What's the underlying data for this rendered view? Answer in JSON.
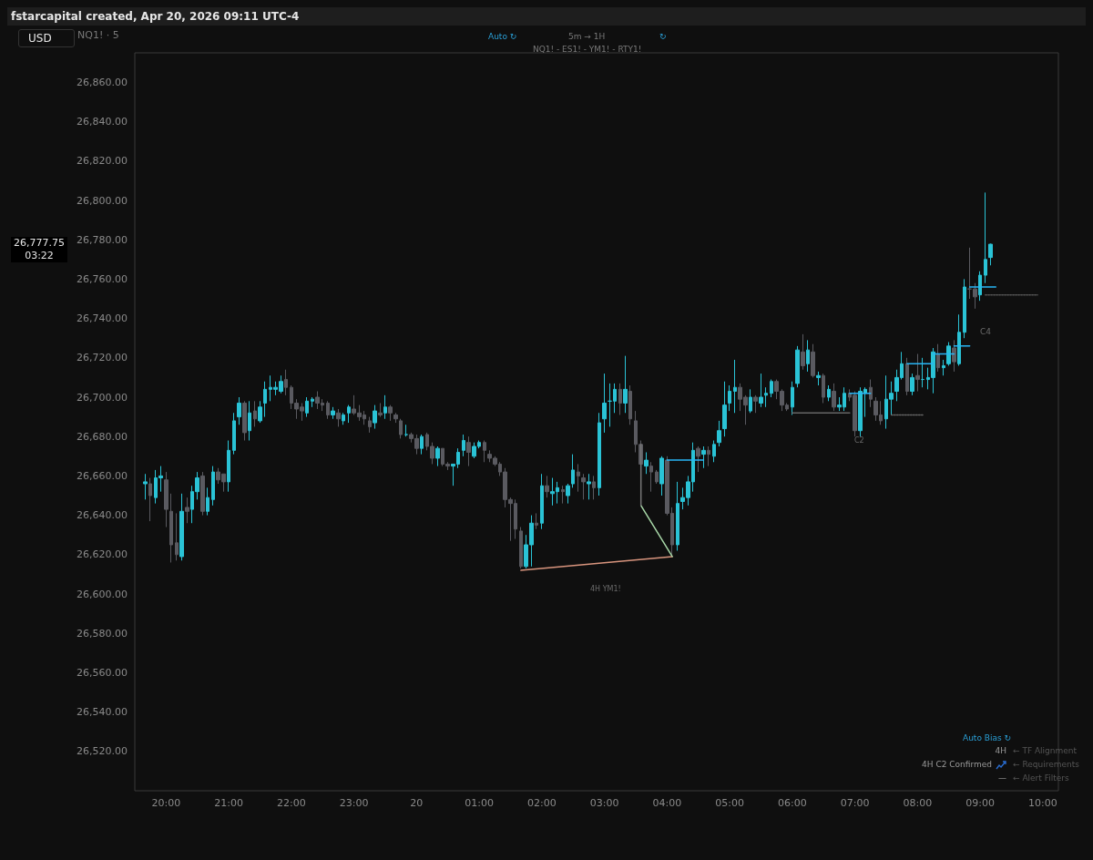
{
  "chart_data": {
    "type": "candlestick",
    "title": "fstarcapital created, Apr 20, 2026 09:11 UTC-4",
    "colors": [
      "#2ac3d6",
      "#5a5a60",
      "#2ac3d6",
      "#2ac3d6",
      "#5a5a60",
      "#5a5a60",
      "#5a5a60",
      "#2ac3d6",
      "#5a5a60",
      "#2ac3d6",
      "#2ac3d6",
      "#5a5a60",
      "#2ac3d6",
      "#2ac3d6",
      "#5a5a60",
      "#5a5a60",
      "#2ac3d6",
      "#2ac3d6",
      "#2ac3d6",
      "#5a5a60",
      "#2ac3d6",
      "#5a5a60",
      "#2ac3d6",
      "#2ac3d6",
      "#2ac3d6",
      "#2ac3d6",
      "#2ac3d6",
      "#5a5a60",
      "#5a5a60",
      "#5a5a60",
      "#5a5a60",
      "#2ac3d6",
      "#2ac3d6",
      "#5a5a60",
      "#5a5a60",
      "#5a5a60",
      "#2ac3d6",
      "#5a5a60",
      "#2ac3d6",
      "#2ac3d6",
      "#5a5a60",
      "#5a5a60",
      "#5a5a60",
      "#5a5a60",
      "#2ac3d6",
      "#5a5a60",
      "#2ac3d6",
      "#5a5a60",
      "#5a5a60",
      "#5a5a60",
      "#2ac3d6",
      "#5a5a60",
      "#5a5a60",
      "#2ac3d6",
      "#5a5a60",
      "#5a5a60",
      "#2ac3d6",
      "#5a5a60",
      "#5a5a60",
      "#2ac3d6",
      "#2ac3d6",
      "#2ac3d6",
      "#5a5a60",
      "#2ac3d6",
      "#2ac3d6",
      "#5a5a60",
      "#5a5a60",
      "#5a5a60",
      "#5a5a60",
      "#5a5a60",
      "#5a5a60",
      "#5a5a60",
      "#5a5a60",
      "#2ac3d6",
      "#2ac3d6",
      "#5a5a60",
      "#2ac3d6",
      "#5a5a60",
      "#2ac3d6",
      "#2ac3d6",
      "#5a5a60",
      "#2ac3d6",
      "#2ac3d6",
      "#5a5a60",
      "#5a5a60",
      "#2ac3d6",
      "#5a5a60",
      "#2ac3d6",
      "#2ac3d6",
      "#2ac3d6",
      "#2ac3d6",
      "#5a5a60",
      "#2ac3d6",
      "#5a5a60",
      "#5a5a60",
      "#5a5a60",
      "#2ac3d6",
      "#5a5a60",
      "#5a5a60",
      "#2ac3d6",
      "#5a5a60",
      "#5a5a60",
      "#2ac3d6",
      "#2ac3d6",
      "#2ac3d6",
      "#2ac3d6",
      "#5a5a60",
      "#2ac3d6",
      "#5a5a60",
      "#2ac3d6",
      "#2ac3d6",
      "#2ac3d6",
      "#2ac3d6",
      "#2ac3d6",
      "#5a5a60",
      "#5a5a60",
      "#2ac3d6",
      "#5a5a60",
      "#2ac3d6",
      "#2ac3d6",
      "#2ac3d6",
      "#5a5a60",
      "#5a5a60",
      "#5a5a60",
      "#2ac3d6",
      "#2ac3d6",
      "#5a5a60",
      "#2ac3d6",
      "#5a5a60",
      "#2ac3d6",
      "#5a5a60",
      "#2ac3d6",
      "#5a5a60",
      "#2ac3d6",
      "#2ac3d6",
      "#5a5a60",
      "#5a5a60",
      "#2ac3d6",
      "#2ac3d6",
      "#5a5a60",
      "#5a5a60",
      "#5a5a60",
      "#2ac3d6",
      "#2ac3d6",
      "#2ac3d6",
      "#2ac3d6",
      "#5a5a60",
      "#2ac3d6",
      "#5a5a60",
      "#2ac3d6",
      "#2ac3d6",
      "#2ac3d6",
      "#5a5a60",
      "#2ac3d6",
      "#2ac3d6",
      "#5a5a60",
      "#2ac3d6",
      "#2ac3d6",
      "#5a5a60",
      "#5a5a60",
      "#2ac3d6",
      "#2ac3d6",
      "#2ac3d6"
    ],
    "xlim": [
      "2026-04-19T19:30",
      "2026-04-20T10:15"
    ],
    "xticks": [
      {
        "value": "2026-04-19T20:00",
        "label": "20:00"
      },
      {
        "value": "2026-04-19T21:00",
        "label": "21:00"
      },
      {
        "value": "2026-04-19T22:00",
        "label": "22:00"
      },
      {
        "value": "2026-04-19T23:00",
        "label": "23:00"
      },
      {
        "value": "2026-04-20T00:00",
        "label": "20"
      },
      {
        "value": "2026-04-20T01:00",
        "label": "01:00"
      },
      {
        "value": "2026-04-20T02:00",
        "label": "02:00"
      },
      {
        "value": "2026-04-20T03:00",
        "label": "03:00"
      },
      {
        "value": "2026-04-20T04:00",
        "label": "04:00"
      },
      {
        "value": "2026-04-20T05:00",
        "label": "05:00"
      },
      {
        "value": "2026-04-20T06:00",
        "label": "06:00"
      },
      {
        "value": "2026-04-20T07:00",
        "label": "07:00"
      },
      {
        "value": "2026-04-20T08:00",
        "label": "08:00"
      },
      {
        "value": "2026-04-20T09:00",
        "label": "09:00"
      },
      {
        "value": "2026-04-20T10:00",
        "label": "10:00"
      }
    ],
    "ylim": [
      26500,
      26875
    ],
    "yticks": [
      {
        "value": 26520,
        "label": "26,520.00"
      },
      {
        "value": 26540,
        "label": "26,540.00"
      },
      {
        "value": 26560,
        "label": "26,560.00"
      },
      {
        "value": 26580,
        "label": "26,580.00"
      },
      {
        "value": 26600,
        "label": "26,600.00"
      },
      {
        "value": 26620,
        "label": "26,620.00"
      },
      {
        "value": 26640,
        "label": "26,640.00"
      },
      {
        "value": 26660,
        "label": "26,660.00"
      },
      {
        "value": 26680,
        "label": "26,680.00"
      },
      {
        "value": 26700,
        "label": "26,700.00"
      },
      {
        "value": 26720,
        "label": "26,720.00"
      },
      {
        "value": 26740,
        "label": "26,740.00"
      },
      {
        "value": 26760,
        "label": "26,760.00"
      },
      {
        "value": 26780,
        "label": "26,780.00"
      },
      {
        "value": 26800,
        "label": "26,800.00"
      },
      {
        "value": 26820,
        "label": "26,820.00"
      },
      {
        "value": 26840,
        "label": "26,840.00"
      },
      {
        "value": 26860,
        "label": "26,860.00"
      }
    ],
    "x": [
      "2026-04-19T19:40",
      "2026-04-19T19:45",
      "2026-04-19T19:50",
      "2026-04-19T19:55",
      "2026-04-19T20:00",
      "2026-04-19T20:05",
      "2026-04-19T20:10",
      "2026-04-19T20:15",
      "2026-04-19T20:20",
      "2026-04-19T20:25",
      "2026-04-19T20:30",
      "2026-04-19T20:35",
      "2026-04-19T20:40",
      "2026-04-19T20:45",
      "2026-04-19T20:50",
      "2026-04-19T20:55",
      "2026-04-19T21:00",
      "2026-04-19T21:05",
      "2026-04-19T21:10",
      "2026-04-19T21:15",
      "2026-04-19T21:20",
      "2026-04-19T21:25",
      "2026-04-19T21:30",
      "2026-04-19T21:35",
      "2026-04-19T21:40",
      "2026-04-19T21:45",
      "2026-04-19T21:50",
      "2026-04-19T21:55",
      "2026-04-19T22:00",
      "2026-04-19T22:05",
      "2026-04-19T22:10",
      "2026-04-19T22:15",
      "2026-04-19T22:20",
      "2026-04-19T22:25",
      "2026-04-19T22:30",
      "2026-04-19T22:35",
      "2026-04-19T22:40",
      "2026-04-19T22:45",
      "2026-04-19T22:50",
      "2026-04-19T22:55",
      "2026-04-19T23:00",
      "2026-04-19T23:05",
      "2026-04-19T23:10",
      "2026-04-19T23:15",
      "2026-04-19T23:20",
      "2026-04-19T23:25",
      "2026-04-19T23:30",
      "2026-04-19T23:35",
      "2026-04-19T23:40",
      "2026-04-19T23:45",
      "2026-04-19T23:50",
      "2026-04-19T23:55",
      "2026-04-20T00:00",
      "2026-04-20T00:05",
      "2026-04-20T00:10",
      "2026-04-20T00:15",
      "2026-04-20T00:20",
      "2026-04-20T00:25",
      "2026-04-20T00:30",
      "2026-04-20T00:35",
      "2026-04-20T00:40",
      "2026-04-20T00:45",
      "2026-04-20T00:50",
      "2026-04-20T00:55",
      "2026-04-20T01:00",
      "2026-04-20T01:05",
      "2026-04-20T01:10",
      "2026-04-20T01:15",
      "2026-04-20T01:20",
      "2026-04-20T01:25",
      "2026-04-20T01:30",
      "2026-04-20T01:35",
      "2026-04-20T01:40",
      "2026-04-20T01:45",
      "2026-04-20T01:50",
      "2026-04-20T01:55",
      "2026-04-20T02:00",
      "2026-04-20T02:05",
      "2026-04-20T02:10",
      "2026-04-20T02:15",
      "2026-04-20T02:20",
      "2026-04-20T02:25",
      "2026-04-20T02:30",
      "2026-04-20T02:35",
      "2026-04-20T02:40",
      "2026-04-20T02:45",
      "2026-04-20T02:50",
      "2026-04-20T02:55",
      "2026-04-20T03:00",
      "2026-04-20T03:05",
      "2026-04-20T03:10",
      "2026-04-20T03:15",
      "2026-04-20T03:20",
      "2026-04-20T03:25",
      "2026-04-20T03:30",
      "2026-04-20T03:35",
      "2026-04-20T03:40",
      "2026-04-20T03:45",
      "2026-04-20T03:50",
      "2026-04-20T03:55",
      "2026-04-20T04:00",
      "2026-04-20T04:05",
      "2026-04-20T04:10",
      "2026-04-20T04:15",
      "2026-04-20T04:20",
      "2026-04-20T04:25",
      "2026-04-20T04:30",
      "2026-04-20T04:35",
      "2026-04-20T04:40",
      "2026-04-20T04:45",
      "2026-04-20T04:50",
      "2026-04-20T04:55",
      "2026-04-20T05:00",
      "2026-04-20T05:05",
      "2026-04-20T05:10",
      "2026-04-20T05:15",
      "2026-04-20T05:20",
      "2026-04-20T05:25",
      "2026-04-20T05:30",
      "2026-04-20T05:35",
      "2026-04-20T05:40",
      "2026-04-20T05:45",
      "2026-04-20T05:50",
      "2026-04-20T05:55",
      "2026-04-20T06:00",
      "2026-04-20T06:05",
      "2026-04-20T06:10",
      "2026-04-20T06:15",
      "2026-04-20T06:20",
      "2026-04-20T06:25",
      "2026-04-20T06:30",
      "2026-04-20T06:35",
      "2026-04-20T06:40",
      "2026-04-20T06:45",
      "2026-04-20T06:50",
      "2026-04-20T06:55",
      "2026-04-20T07:00",
      "2026-04-20T07:05",
      "2026-04-20T07:10",
      "2026-04-20T07:15",
      "2026-04-20T07:20",
      "2026-04-20T07:25",
      "2026-04-20T07:30",
      "2026-04-20T07:35",
      "2026-04-20T07:40",
      "2026-04-20T07:45",
      "2026-04-20T07:50",
      "2026-04-20T07:55",
      "2026-04-20T08:00",
      "2026-04-20T08:05",
      "2026-04-20T08:10",
      "2026-04-20T08:15",
      "2026-04-20T08:20",
      "2026-04-20T08:25",
      "2026-04-20T08:30",
      "2026-04-20T08:35",
      "2026-04-20T08:40",
      "2026-04-20T08:45",
      "2026-04-20T08:50",
      "2026-04-20T08:55",
      "2026-04-20T09:00",
      "2026-04-20T09:05",
      "2026-04-20T09:10"
    ],
    "ohlc": [
      [
        26656,
        26661,
        26648,
        26657
      ],
      [
        26656,
        26659,
        26637,
        26650
      ],
      [
        26649,
        26663,
        26646,
        26659
      ],
      [
        26659,
        26665,
        26652,
        26660
      ],
      [
        26658,
        26662,
        26634,
        26643
      ],
      [
        26642,
        26651,
        26616,
        26625
      ],
      [
        26626,
        26641,
        26617,
        26620
      ],
      [
        26619,
        26651,
        26617,
        26642
      ],
      [
        26644,
        26649,
        26636,
        26642
      ],
      [
        26643,
        26655,
        26636,
        26652
      ],
      [
        26652,
        26662,
        26648,
        26659
      ],
      [
        26660,
        26662,
        26640,
        26642
      ],
      [
        26642,
        26654,
        26640,
        26649
      ],
      [
        26648,
        26665,
        26645,
        26662
      ],
      [
        26662,
        26664,
        26656,
        26658
      ],
      [
        26661,
        26661,
        26652,
        26657
      ],
      [
        26657,
        26678,
        26652,
        26673
      ],
      [
        26673,
        26692,
        26671,
        26688
      ],
      [
        26690,
        26700,
        26686,
        26697
      ],
      [
        26697,
        26698,
        26678,
        26682
      ],
      [
        26683,
        26698,
        26678,
        26692
      ],
      [
        26693,
        26698,
        26685,
        26689
      ],
      [
        26688,
        26698,
        26687,
        26695
      ],
      [
        26697,
        26708,
        26690,
        26704
      ],
      [
        26704,
        26711,
        26698,
        26705
      ],
      [
        26704,
        26708,
        26701,
        26705
      ],
      [
        26703,
        26711,
        26702,
        26708
      ],
      [
        26709,
        26714,
        26701,
        26705
      ],
      [
        26705,
        26706,
        26694,
        26697
      ],
      [
        26697,
        26699,
        26689,
        26694
      ],
      [
        26695,
        26697,
        26688,
        26693
      ],
      [
        26692,
        26700,
        26690,
        26698
      ],
      [
        26698,
        26700,
        26695,
        26699
      ],
      [
        26700,
        26703,
        26694,
        26697
      ],
      [
        26697,
        26699,
        26693,
        26696
      ],
      [
        26697,
        26698,
        26689,
        26691
      ],
      [
        26691,
        26695,
        26689,
        26693
      ],
      [
        26692,
        26694,
        26685,
        26689
      ],
      [
        26688,
        26692,
        26686,
        26691
      ],
      [
        26692,
        26696,
        26687,
        26695
      ],
      [
        26694,
        26701,
        26691,
        26692
      ],
      [
        26692,
        26696,
        26688,
        26690
      ],
      [
        26691,
        26693,
        26686,
        26689
      ],
      [
        26688,
        26690,
        26682,
        26685
      ],
      [
        26687,
        26696,
        26684,
        26693
      ],
      [
        26692,
        26697,
        26690,
        26691
      ],
      [
        26692,
        26701,
        26689,
        26695
      ],
      [
        26695,
        26696,
        26688,
        26692
      ],
      [
        26691,
        26692,
        26687,
        26689
      ],
      [
        26688,
        26689,
        26679,
        26681
      ],
      [
        26681,
        26686,
        26680,
        26681
      ],
      [
        26681,
        26682,
        26677,
        26679
      ],
      [
        26679,
        26681,
        26671,
        26674
      ],
      [
        26674,
        26681,
        26671,
        26680
      ],
      [
        26681,
        26682,
        26673,
        26675
      ],
      [
        26675,
        26677,
        26666,
        26669
      ],
      [
        26669,
        26675,
        26665,
        26674
      ],
      [
        26674,
        26674,
        26665,
        26666
      ],
      [
        26666,
        26667,
        26663,
        26665
      ],
      [
        26665,
        26666,
        26655,
        26666
      ],
      [
        26666,
        26674,
        26664,
        26672
      ],
      [
        26673,
        26681,
        26670,
        26678
      ],
      [
        26677,
        26680,
        26665,
        26672
      ],
      [
        26670,
        26677,
        26669,
        26675
      ],
      [
        26675,
        26678,
        26674,
        26677
      ],
      [
        26677,
        26678,
        26667,
        26673
      ],
      [
        26671,
        26673,
        26667,
        26669
      ],
      [
        26669,
        26670,
        26665,
        26666
      ],
      [
        26666,
        26667,
        26660,
        26662
      ],
      [
        26662,
        26664,
        26644,
        26648
      ],
      [
        26648,
        26649,
        26627,
        26646
      ],
      [
        26646,
        26648,
        26628,
        26633
      ],
      [
        26632,
        26634,
        26613,
        26614
      ],
      [
        26614,
        26630,
        26613,
        26625
      ],
      [
        26625,
        26640,
        26614,
        26636
      ],
      [
        26636,
        26641,
        26633,
        26635
      ],
      [
        26636,
        26661,
        26633,
        26655
      ],
      [
        26655,
        26660,
        26649,
        26652
      ],
      [
        26651,
        26659,
        26645,
        26652
      ],
      [
        26652,
        26657,
        26646,
        26654
      ],
      [
        26653,
        26655,
        26646,
        26652
      ],
      [
        26650,
        26656,
        26646,
        26655
      ],
      [
        26656,
        26671,
        26654,
        26663
      ],
      [
        26662,
        26666,
        26652,
        26660
      ],
      [
        26659,
        26661,
        26648,
        26657
      ],
      [
        26656,
        26661,
        26648,
        26657
      ],
      [
        26657,
        26660,
        26648,
        26654
      ],
      [
        26654,
        26692,
        26650,
        26687
      ],
      [
        26689,
        26712,
        26682,
        26697
      ],
      [
        26698,
        26707,
        26685,
        26698
      ],
      [
        26698,
        26707,
        26692,
        26704
      ],
      [
        26704,
        26707,
        26691,
        26697
      ],
      [
        26697,
        26721,
        26692,
        26704
      ],
      [
        26703,
        26706,
        26686,
        26689
      ],
      [
        26688,
        26693,
        26672,
        26676
      ],
      [
        26676,
        26678,
        26654,
        26666
      ],
      [
        26665,
        26672,
        26661,
        26668
      ],
      [
        26665,
        26667,
        26652,
        26662
      ],
      [
        26662,
        26663,
        26656,
        26657
      ],
      [
        26656,
        26670,
        26650,
        26669
      ],
      [
        26668,
        26670,
        26640,
        26641
      ],
      [
        26641,
        26644,
        26620,
        26625
      ],
      [
        26625,
        26657,
        26622,
        26646
      ],
      [
        26647,
        26654,
        26643,
        26649
      ],
      [
        26649,
        26660,
        26645,
        26657
      ],
      [
        26657,
        26677,
        26652,
        26673
      ],
      [
        26674,
        26675,
        26662,
        26670
      ],
      [
        26671,
        26675,
        26664,
        26673
      ],
      [
        26673,
        26675,
        26665,
        26671
      ],
      [
        26670,
        26678,
        26667,
        26676
      ],
      [
        26677,
        26688,
        26675,
        26683
      ],
      [
        26684,
        26708,
        26680,
        26696
      ],
      [
        26697,
        26706,
        26693,
        26703
      ],
      [
        26703,
        26719,
        26692,
        26705
      ],
      [
        26705,
        26707,
        26693,
        26699
      ],
      [
        26700,
        26701,
        26686,
        26696
      ],
      [
        26693,
        26704,
        26692,
        26700
      ],
      [
        26700,
        26701,
        26692,
        26698
      ],
      [
        26697,
        26712,
        26695,
        26700
      ],
      [
        26701,
        26705,
        26695,
        26702
      ],
      [
        26702,
        26709,
        26700,
        26708
      ],
      [
        26708,
        26709,
        26699,
        26703
      ],
      [
        26703,
        26704,
        26693,
        26696
      ],
      [
        26696,
        26697,
        26693,
        26694
      ],
      [
        26695,
        26708,
        26691,
        26705
      ],
      [
        26707,
        26726,
        26705,
        26724
      ],
      [
        26723,
        26732,
        26714,
        26716
      ],
      [
        26717,
        26729,
        26713,
        26724
      ],
      [
        26723,
        26727,
        26710,
        26711
      ],
      [
        26710,
        26713,
        26706,
        26711
      ],
      [
        26711,
        26712,
        26697,
        26700
      ],
      [
        26700,
        26706,
        26698,
        26704
      ],
      [
        26703,
        26707,
        26693,
        26695
      ],
      [
        26695,
        26700,
        26693,
        26696
      ],
      [
        26695,
        26705,
        26693,
        26702
      ],
      [
        26702,
        26704,
        26698,
        26700
      ],
      [
        26701,
        26703,
        26680,
        26683
      ],
      [
        26683,
        26705,
        26680,
        26703
      ],
      [
        26702,
        26705,
        26690,
        26704
      ],
      [
        26705,
        26709,
        26695,
        26699
      ],
      [
        26698,
        26700,
        26688,
        26691
      ],
      [
        26691,
        26698,
        26686,
        26688
      ],
      [
        26689,
        26711,
        26684,
        26699
      ],
      [
        26699,
        26708,
        26691,
        26702
      ],
      [
        26703,
        26714,
        26698,
        26710
      ],
      [
        26710,
        26723,
        26709,
        26717
      ],
      [
        26717,
        26720,
        26701,
        26703
      ],
      [
        26703,
        26712,
        26701,
        26710
      ],
      [
        26711,
        26722,
        26703,
        26709
      ],
      [
        26709,
        26720,
        26705,
        26709
      ],
      [
        26709,
        26715,
        26704,
        26710
      ],
      [
        26710,
        26725,
        26702,
        26723
      ],
      [
        26722,
        26727,
        26713,
        26715
      ],
      [
        26715,
        26719,
        26711,
        26716
      ],
      [
        26717,
        26728,
        26716,
        26726
      ],
      [
        26725,
        26729,
        26713,
        26718
      ],
      [
        26717,
        26742,
        26716,
        26733
      ],
      [
        26733,
        26760,
        26730,
        26756
      ],
      [
        26755,
        26776,
        26750,
        26755
      ],
      [
        26755,
        26758,
        26745,
        26751
      ],
      [
        26752,
        26764,
        26749,
        26762
      ],
      [
        26762,
        26804,
        26758,
        26770
      ],
      [
        26771,
        26778,
        26767,
        26777.75
      ]
    ],
    "series": [
      {
        "type": "line",
        "color": "#d9957e",
        "x": [
          "2026-04-20T01:40",
          "2026-04-20T04:05"
        ],
        "values": [
          26612,
          26619
        ]
      },
      {
        "type": "line",
        "color": "#a8d8a8",
        "x": [
          "2026-04-20T03:35",
          "2026-04-20T04:05"
        ],
        "values": [
          26645,
          26619
        ]
      },
      {
        "type": "line",
        "color": "#777777",
        "x": [
          "2026-04-20T03:35",
          "2026-04-20T03:35"
        ],
        "values": [
          26676,
          26645
        ]
      },
      {
        "type": "line",
        "color": "#666666",
        "x": [
          "2026-04-20T06:00",
          "2026-04-20T06:55"
        ],
        "values": [
          26692,
          26692
        ]
      },
      {
        "type": "line",
        "color": "#666666",
        "line_style": "dotted",
        "x": [
          "2026-04-20T07:35",
          "2026-04-20T08:05"
        ],
        "values": [
          26691,
          26691
        ]
      },
      {
        "type": "line",
        "color": "#555555",
        "line_style": "dotted",
        "x": [
          "2026-04-20T09:05",
          "2026-04-20T09:55"
        ],
        "values": [
          26752,
          26752
        ]
      },
      {
        "type": "line",
        "color": "#29b6f6",
        "x": [
          "2026-04-20T04:00",
          "2026-04-20T04:35"
        ],
        "values": [
          26668,
          26668
        ]
      },
      {
        "type": "line",
        "color": "#29b6f6",
        "x": [
          "2026-04-20T06:55",
          "2026-04-20T07:15"
        ],
        "values": [
          26702,
          26702
        ]
      },
      {
        "type": "line",
        "color": "#29b6f6",
        "x": [
          "2026-04-20T07:50",
          "2026-04-20T08:15"
        ],
        "values": [
          26717,
          26717
        ]
      },
      {
        "type": "line",
        "color": "#29b6f6",
        "x": [
          "2026-04-20T08:15",
          "2026-04-20T08:35"
        ],
        "values": [
          26722,
          26722
        ]
      },
      {
        "type": "line",
        "color": "#29b6f6",
        "x": [
          "2026-04-20T08:35",
          "2026-04-20T08:50"
        ],
        "values": [
          26726,
          26726
        ]
      },
      {
        "type": "line",
        "color": "#29b6f6",
        "x": [
          "2026-04-20T08:50",
          "2026-04-20T09:15"
        ],
        "values": [
          26756,
          26756
        ]
      }
    ],
    "annotations": [
      "USD",
      "NQ1! · 5",
      "Auto ↻",
      "5m → 1H",
      "↻",
      "NQ1! - ES1! - YM1! - RTY1!",
      "03:22",
      "Auto Bias ↻",
      "4H",
      "← TF Alignment",
      "4H C2 Confirmed",
      "← Requirements",
      "—",
      "← Alert Filters",
      "4H YM1!",
      "C2",
      "C4",
      "26,777.75"
    ]
  }
}
